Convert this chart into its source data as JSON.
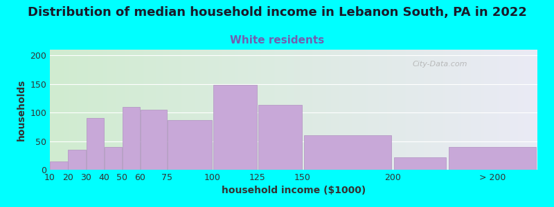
{
  "title": "Distribution of median household income in Lebanon South, PA in 2022",
  "subtitle": "White residents",
  "xlabel": "household income ($1000)",
  "ylabel": "households",
  "background_color": "#00FFFF",
  "bar_color": "#c8a8d8",
  "bar_edge_color": "#b090c0",
  "categories": [
    "10",
    "20",
    "30",
    "40",
    "50",
    "60",
    "75",
    "100",
    "125",
    "150",
    "200",
    "> 200"
  ],
  "bar_lefts": [
    10,
    20,
    30,
    40,
    50,
    60,
    75,
    100,
    125,
    150,
    200,
    230
  ],
  "bar_widths": [
    10,
    10,
    10,
    10,
    10,
    15,
    25,
    25,
    25,
    50,
    30,
    50
  ],
  "values": [
    15,
    35,
    90,
    40,
    110,
    105,
    87,
    148,
    113,
    60,
    22,
    40
  ],
  "ylim": [
    0,
    210
  ],
  "xlim": [
    10,
    280
  ],
  "yticks": [
    0,
    50,
    100,
    150,
    200
  ],
  "xtick_positions": [
    10,
    20,
    30,
    40,
    50,
    60,
    75,
    100,
    125,
    150,
    200,
    255
  ],
  "xtick_labels": [
    "10",
    "20",
    "30",
    "40",
    "50",
    "60",
    "75",
    "100",
    "125",
    "150",
    "200",
    "> 200"
  ],
  "title_fontsize": 13,
  "subtitle_fontsize": 11,
  "subtitle_color": "#7060b0",
  "axis_label_fontsize": 10,
  "tick_fontsize": 9,
  "watermark_text": "City-Data.com",
  "watermark_color": "#b0b0b0",
  "grad_left_color": "#d0ecd0",
  "grad_right_color": "#eaeaf5"
}
